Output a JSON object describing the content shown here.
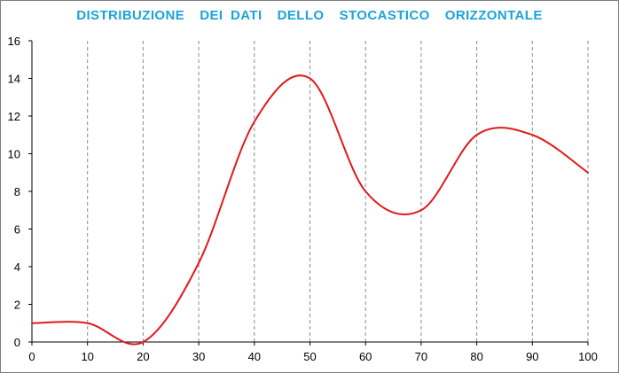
{
  "chart_data": {
    "type": "line",
    "title": "DISTRIBUZIONE  DEI DATI  DELLO  STOCASTICO  ORIZZONTALE",
    "xlabel": "",
    "ylabel": "",
    "x": [
      0,
      10,
      20,
      30,
      40,
      50,
      60,
      70,
      80,
      90,
      100
    ],
    "series": [
      {
        "values": [
          1,
          1,
          0,
          4.2,
          11.7,
          14,
          8,
          7,
          11,
          11,
          9
        ],
        "color": "#e01b1b"
      }
    ],
    "xlim": [
      0,
      100
    ],
    "ylim": [
      0,
      16
    ],
    "xticks": [
      0,
      10,
      20,
      30,
      40,
      50,
      60,
      70,
      80,
      90,
      100
    ],
    "yticks": [
      0,
      2,
      4,
      6,
      8,
      10,
      12,
      14,
      16
    ],
    "grid": "vertical-dashed",
    "legend": "none",
    "colors": {
      "title": "#1aa3d9",
      "line": "#e01b1b",
      "grid": "#8c8c8c",
      "axis": "#000000"
    }
  }
}
